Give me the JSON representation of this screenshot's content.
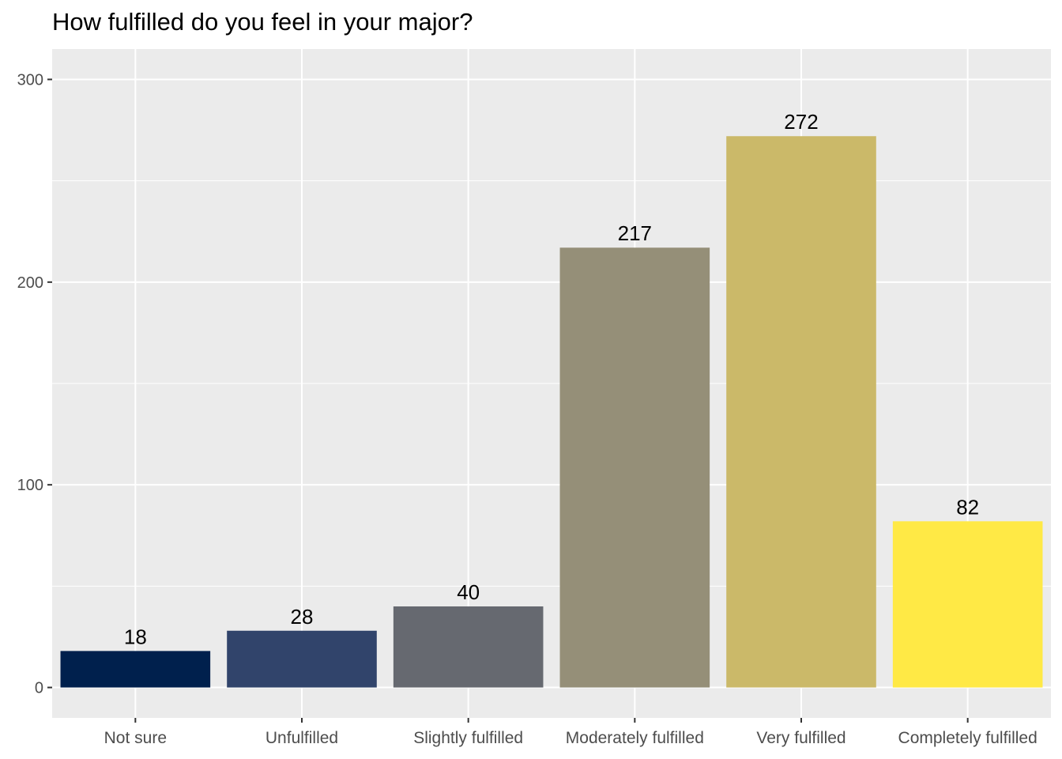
{
  "chart_data": {
    "type": "bar",
    "title": "How fulfilled do you feel in your major?",
    "xlabel": "",
    "ylabel": "",
    "categories": [
      "Not sure",
      "Unfulfilled",
      "Slightly fulfilled",
      "Moderately fulfilled",
      "Very fulfilled",
      "Completely fulfilled"
    ],
    "values": [
      18,
      28,
      40,
      217,
      272,
      82
    ],
    "value_labels": [
      "18",
      "28",
      "40",
      "217",
      "272",
      "82"
    ],
    "bar_colors": [
      "#00204d",
      "#31446b",
      "#666970",
      "#958f78",
      "#cbb969",
      "#ffe945"
    ],
    "ylim": [
      -15,
      315
    ],
    "yticks": [
      0,
      100,
      200,
      300
    ],
    "ytick_labels": [
      "0",
      "100",
      "200",
      "300"
    ],
    "grid": true,
    "legend": "none",
    "panel_background": "#ebebeb",
    "grid_color": "#ffffff"
  }
}
